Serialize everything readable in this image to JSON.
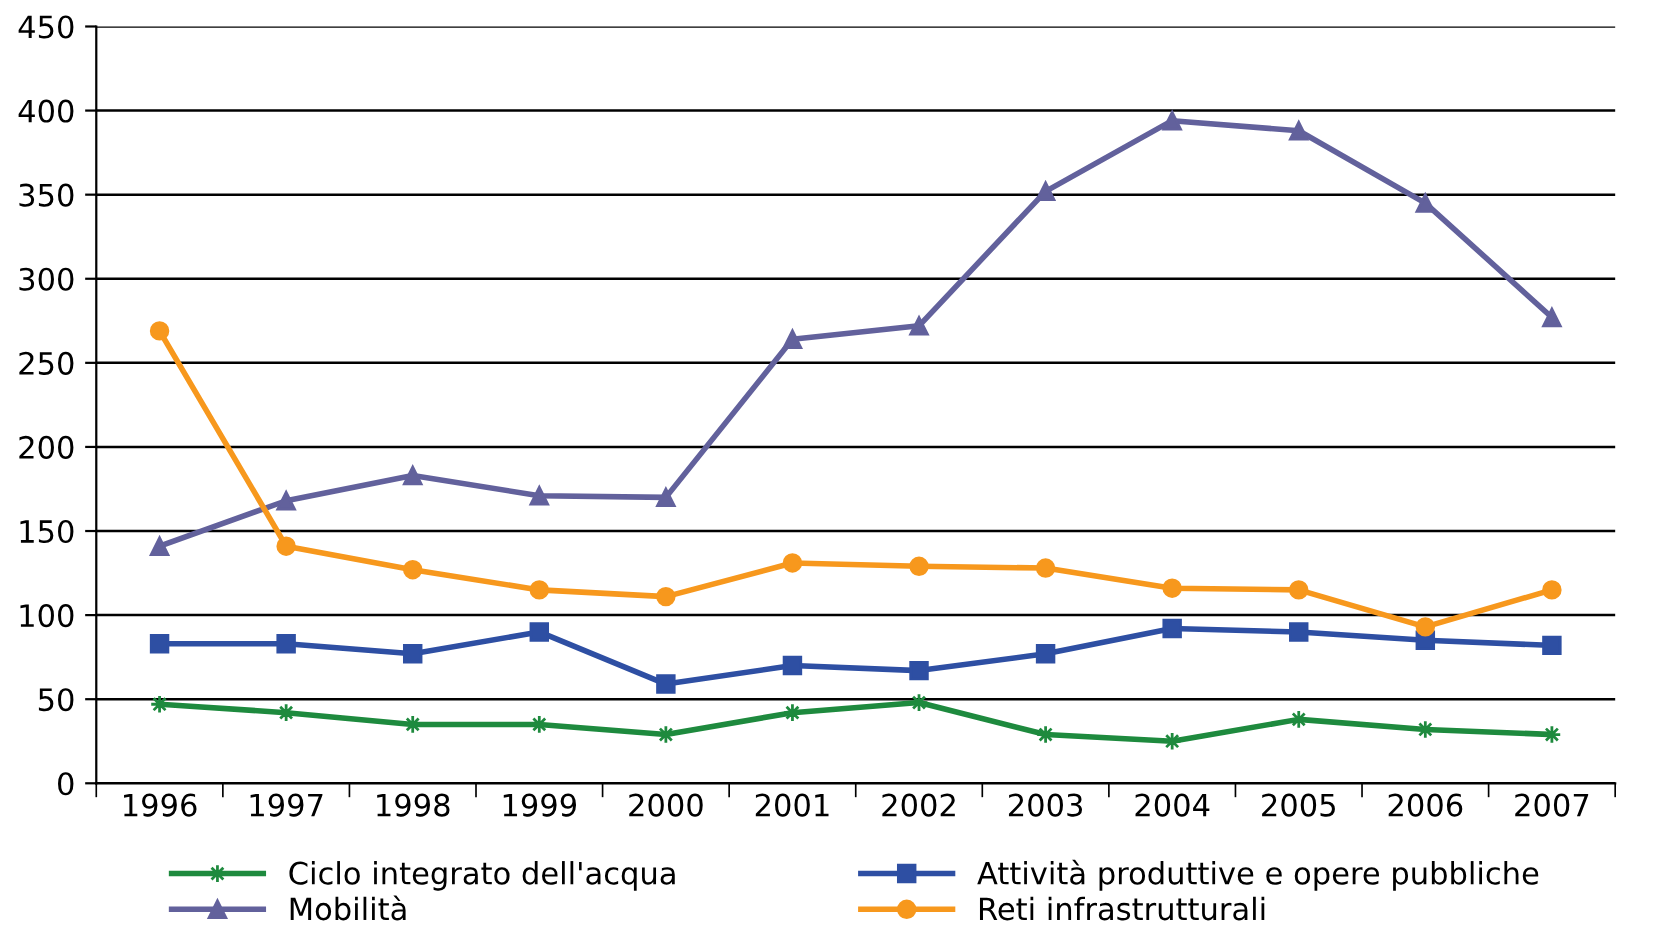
{
  "chart_data": {
    "type": "line",
    "categories": [
      "1996",
      "1997",
      "1998",
      "1999",
      "2000",
      "2001",
      "2002",
      "2003",
      "2004",
      "2005",
      "2006",
      "2007"
    ],
    "series": [
      {
        "name": "Ciclo integrato dell'acqua",
        "color": "#1e8a3e",
        "marker": "star",
        "values": [
          47,
          42,
          35,
          35,
          29,
          42,
          48,
          29,
          25,
          38,
          32,
          29
        ]
      },
      {
        "name": "Attività produttive e opere pubbliche",
        "color": "#2e4fa3",
        "marker": "square",
        "values": [
          83,
          83,
          77,
          90,
          59,
          70,
          67,
          77,
          92,
          90,
          85,
          82
        ]
      },
      {
        "name": "Mobilità",
        "color": "#62619c",
        "marker": "triangle",
        "values": [
          141,
          168,
          183,
          171,
          170,
          264,
          272,
          352,
          394,
          388,
          345,
          277
        ]
      },
      {
        "name": "Reti infrastrutturali",
        "color": "#f7981d",
        "marker": "circle",
        "values": [
          269,
          141,
          127,
          115,
          111,
          131,
          129,
          128,
          116,
          115,
          93,
          115
        ]
      }
    ],
    "ylim": [
      0,
      450
    ],
    "yticks": [
      0,
      50,
      100,
      150,
      200,
      250,
      300,
      350,
      400,
      450
    ],
    "grid": "y",
    "legend": "bottom",
    "line_style": "solid"
  }
}
